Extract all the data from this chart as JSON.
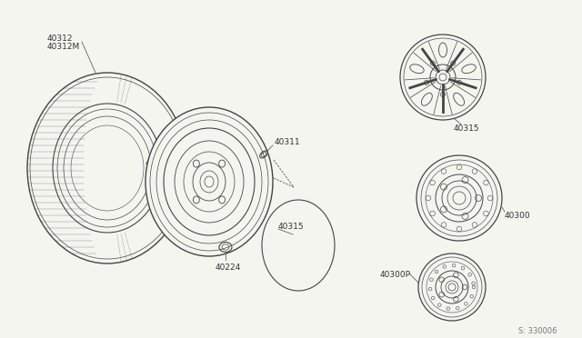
{
  "bg_color": "#f5f5f0",
  "line_color": "#444444",
  "diagram_number": "S: 330006",
  "parts": {
    "tire_label1": "40312",
    "tire_label2": "40312M",
    "wheel_label1": "40300",
    "wheel_label2": "40300P",
    "valve_label": "40311",
    "lug_label": "40224",
    "hubcap_label": "40315",
    "right_alloy_label": "40315",
    "right_steel_label": "40300",
    "right_small_label": "40300P"
  },
  "font_size": 6.5,
  "font_color": "#333333"
}
